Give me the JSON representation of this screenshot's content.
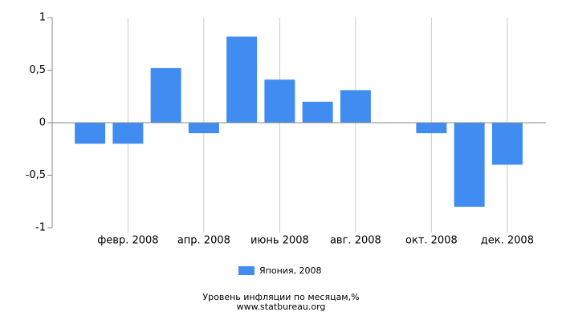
{
  "chart_data": {
    "type": "bar",
    "categories": [
      null,
      "февр. 2008",
      null,
      "апр. 2008",
      null,
      "июнь 2008",
      null,
      "авг. 2008",
      null,
      "окт. 2008",
      null,
      "дек. 2008"
    ],
    "series": [
      {
        "name": "Япония, 2008",
        "color": "#418cf0",
        "values": [
          -0.2,
          -0.2,
          0.52,
          -0.1,
          0.82,
          0.41,
          0.2,
          0.31,
          0,
          -0.1,
          -0.8,
          -0.4
        ]
      }
    ],
    "ylim": [
      -1,
      1
    ],
    "yticks": [
      -1,
      {
        "value": -0.5,
        "label": "-0,5"
      },
      0,
      {
        "value": 0.5,
        "label": "0,5"
      },
      1
    ],
    "caption": "Уровень инфляции по месяцам,%",
    "source": "www.statbureau.org"
  }
}
